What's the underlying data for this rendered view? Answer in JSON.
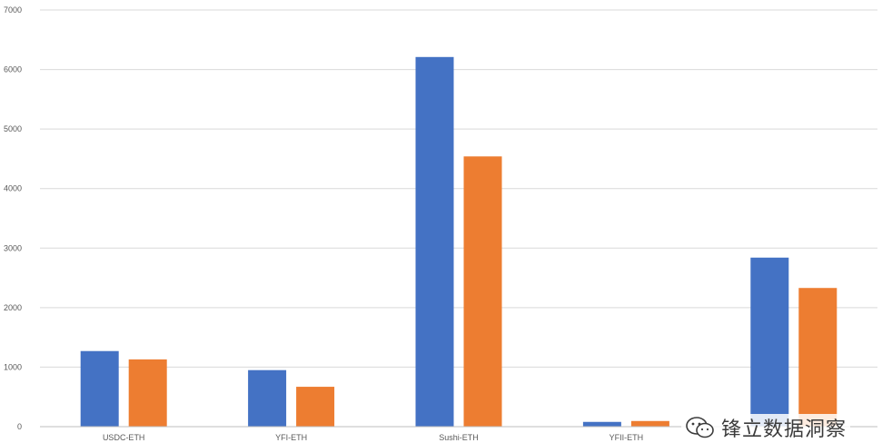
{
  "chart_data": {
    "type": "bar",
    "categories": [
      "USDC-ETH",
      "YFI-ETH",
      "Sushi-ETH",
      "YFII-ETH",
      ""
    ],
    "series": [
      {
        "values": [
          1270,
          950,
          6210,
          80,
          2840
        ],
        "color": "#4472C4"
      },
      {
        "values": [
          1130,
          670,
          4540,
          95,
          2330
        ],
        "color": "#ED7D31"
      }
    ],
    "yticks": [
      0,
      1000,
      2000,
      3000,
      4000,
      5000,
      6000,
      7000
    ],
    "ylim": [
      0,
      7000
    ],
    "grid": true
  },
  "watermark": {
    "text": "锋立数据洞察",
    "logo_icon": "wechat-icon"
  }
}
